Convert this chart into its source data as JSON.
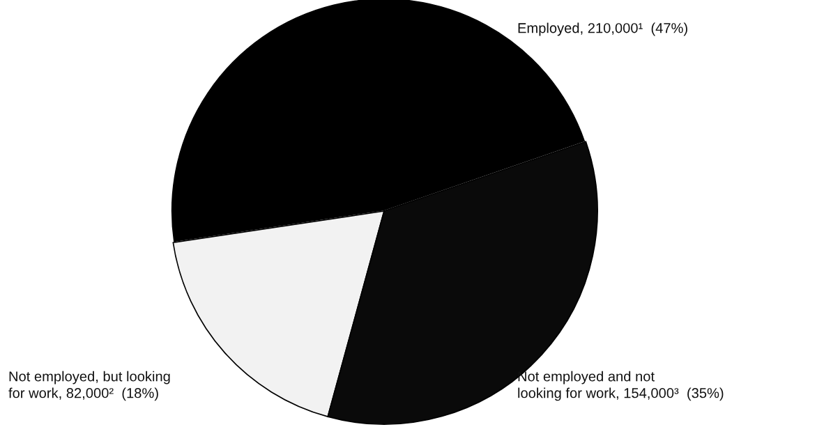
{
  "chart_data": {
    "type": "pie",
    "categories": [
      "Employed, 210,000¹  (47%)",
      "Not employed, but looking\nfor work, 82,000²  (18%)",
      "Not employed and not\nlooking for work, 154,000³  (35%)"
    ],
    "values": [
      210000,
      82000,
      154000
    ],
    "colors": [
      "#000000",
      "#f2f2f2",
      "#0a0a0a"
    ],
    "legend": false
  }
}
